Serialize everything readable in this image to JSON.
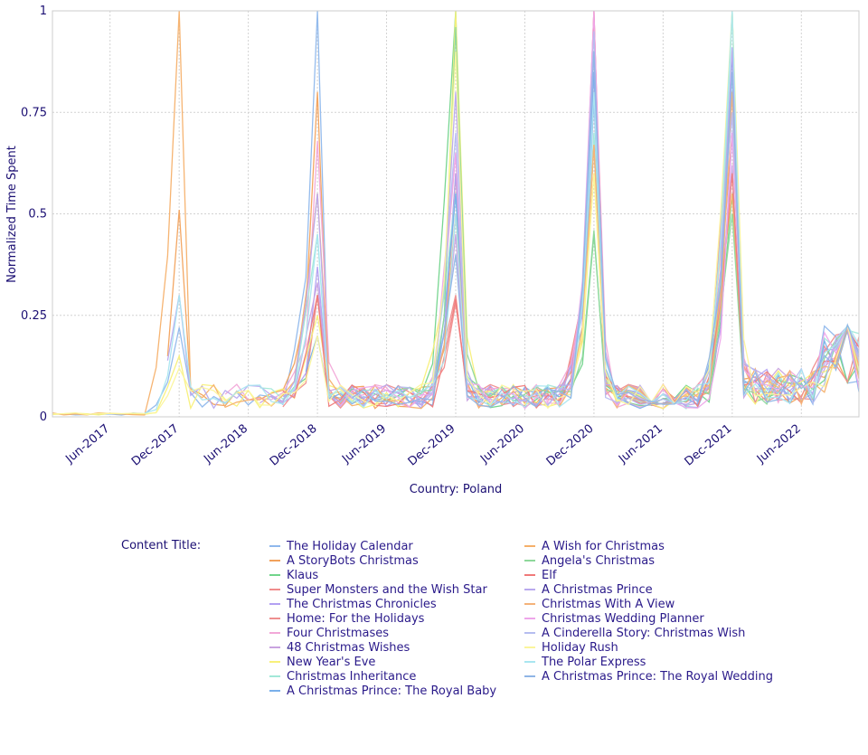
{
  "chart_data": {
    "type": "line",
    "xlabel": "Country: Poland",
    "ylabel": "Normalized Time Spent",
    "ylim": [
      0,
      1
    ],
    "xlim": [
      "2017-01",
      "2022-10"
    ],
    "x_ticks": [
      "Jun-2017",
      "Dec-2017",
      "Jun-2018",
      "Dec-2018",
      "Jun-2019",
      "Dec-2019",
      "Jun-2020",
      "Dec-2020",
      "Jun-2021",
      "Dec-2021",
      "Jun-2022"
    ],
    "y_ticks": [
      "0",
      "0.25",
      "0.5",
      "0.75",
      "1"
    ],
    "grid": true,
    "legend_title": "Content Title:",
    "legend_position": "bottom",
    "series": [
      {
        "name": "The Holiday Calendar",
        "color": "#8fb8ec",
        "peaks": [
          0.22,
          1.0,
          0.55,
          0.78,
          0.75
        ]
      },
      {
        "name": "A StoryBots Christmas",
        "color": "#f2a25c",
        "peaks": [
          0.51,
          0.8,
          0.6,
          0.67,
          0.7
        ]
      },
      {
        "name": "Klaus",
        "color": "#71d48b",
        "peaks": [
          0.18,
          0.3,
          1.0,
          0.45,
          0.55
        ]
      },
      {
        "name": "Super Monsters and the Wish Star",
        "color": "#f08c8c",
        "peaks": [
          0.25,
          0.3,
          0.28,
          1.0,
          0.8
        ]
      },
      {
        "name": "The Christmas Chronicles",
        "color": "#b3a0f2",
        "peaks": [
          0.3,
          0.37,
          0.6,
          0.85,
          0.7
        ]
      },
      {
        "name": "Home: For the Holidays",
        "color": "#ee8f8f",
        "peaks": [
          0.1,
          0.3,
          0.3,
          1.0,
          0.8
        ]
      },
      {
        "name": "Four Christmases",
        "color": "#f2a8d8",
        "peaks": [
          0.28,
          0.68,
          0.65,
          0.98,
          0.75
        ]
      },
      {
        "name": "48 Christmas Wishes",
        "color": "#c9a3e0",
        "peaks": [
          0.18,
          0.33,
          0.45,
          0.9,
          0.62
        ]
      },
      {
        "name": "New Year's Eve",
        "color": "#f8f07a",
        "peaks": [
          0.15,
          0.25,
          1.0,
          0.6,
          1.0
        ]
      },
      {
        "name": "Christmas Inheritance",
        "color": "#a2e8d8",
        "peaks": [
          0.35,
          0.45,
          0.55,
          0.7,
          1.0
        ]
      },
      {
        "name": "A Christmas Prince: The Royal Baby",
        "color": "#7ab0ea",
        "peaks": [
          0.1,
          0.2,
          0.55,
          0.85,
          0.9
        ]
      },
      {
        "name": "A Wish for Christmas",
        "color": "#f5b06a",
        "peaks": [
          1.0,
          0.55,
          0.5,
          0.67,
          0.55
        ]
      },
      {
        "name": "Angela's Christmas",
        "color": "#8ed89b",
        "peaks": [
          0.12,
          0.3,
          0.96,
          0.46,
          0.5
        ]
      },
      {
        "name": "Elf",
        "color": "#f07a7a",
        "peaks": [
          0.1,
          0.3,
          0.29,
          0.98,
          0.6
        ]
      },
      {
        "name": "A Christmas Prince",
        "color": "#b9a9ee",
        "peaks": [
          0.3,
          0.55,
          0.8,
          0.9,
          0.91
        ]
      },
      {
        "name": "Christmas With A View",
        "color": "#f4b37a",
        "peaks": [
          0.1,
          0.3,
          0.45,
          0.67,
          0.8
        ]
      },
      {
        "name": "Christmas Wedding Planner",
        "color": "#eea6ea",
        "peaks": [
          0.15,
          0.6,
          0.65,
          1.0,
          0.7
        ]
      },
      {
        "name": "A Cinderella Story: Christmas Wish",
        "color": "#b6bdf0",
        "peaks": [
          0.2,
          0.55,
          0.7,
          0.95,
          0.75
        ]
      },
      {
        "name": "Holiday Rush",
        "color": "#fbf59c",
        "peaks": [
          0.12,
          0.2,
          0.9,
          0.6,
          1.0
        ]
      },
      {
        "name": "The Polar Express",
        "color": "#a9e6f0",
        "peaks": [
          0.3,
          0.45,
          0.5,
          0.8,
          1.0
        ]
      },
      {
        "name": "A Christmas Prince: The Royal Wedding",
        "color": "#8fb5e6",
        "peaks": [
          0.15,
          0.35,
          0.4,
          0.9,
          0.85
        ]
      }
    ]
  }
}
